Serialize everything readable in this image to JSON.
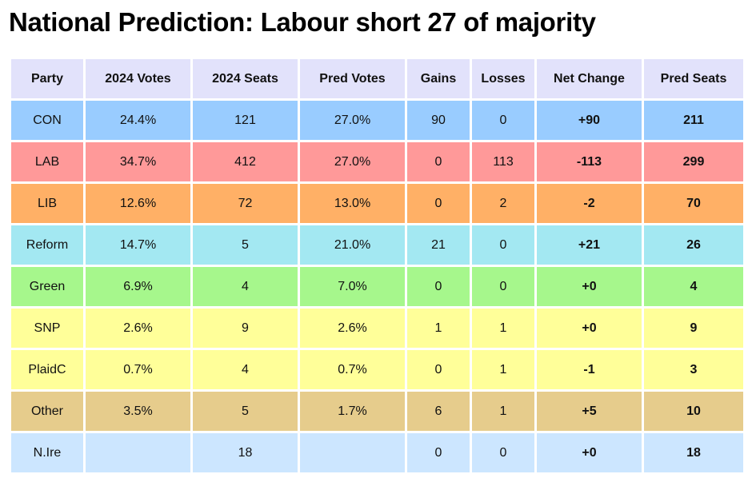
{
  "title": "National Prediction: Labour short 27 of majority",
  "columns": [
    "Party",
    "2024 Votes",
    "2024 Seats",
    "Pred Votes",
    "Gains",
    "Losses",
    "Net Change",
    "Pred Seats"
  ],
  "rows": [
    {
      "party": "CON",
      "votes_2024": "24.4%",
      "seats_2024": "121",
      "pred_votes": "27.0%",
      "gains": "90",
      "losses": "0",
      "net_change": "+90",
      "pred_seats": "211",
      "color": "#99ccff"
    },
    {
      "party": "LAB",
      "votes_2024": "34.7%",
      "seats_2024": "412",
      "pred_votes": "27.0%",
      "gains": "0",
      "losses": "113",
      "net_change": "-113",
      "pred_seats": "299",
      "color": "#ff9999"
    },
    {
      "party": "LIB",
      "votes_2024": "12.6%",
      "seats_2024": "72",
      "pred_votes": "13.0%",
      "gains": "0",
      "losses": "2",
      "net_change": "-2",
      "pred_seats": "70",
      "color": "#ffb066"
    },
    {
      "party": "Reform",
      "votes_2024": "14.7%",
      "seats_2024": "5",
      "pred_votes": "21.0%",
      "gains": "21",
      "losses": "0",
      "net_change": "+21",
      "pred_seats": "26",
      "color": "#a3e8f2"
    },
    {
      "party": "Green",
      "votes_2024": "6.9%",
      "seats_2024": "4",
      "pred_votes": "7.0%",
      "gains": "0",
      "losses": "0",
      "net_change": "+0",
      "pred_seats": "4",
      "color": "#a6f78c"
    },
    {
      "party": "SNP",
      "votes_2024": "2.6%",
      "seats_2024": "9",
      "pred_votes": "2.6%",
      "gains": "1",
      "losses": "1",
      "net_change": "+0",
      "pred_seats": "9",
      "color": "#ffff99"
    },
    {
      "party": "PlaidC",
      "votes_2024": "0.7%",
      "seats_2024": "4",
      "pred_votes": "0.7%",
      "gains": "0",
      "losses": "1",
      "net_change": "-1",
      "pred_seats": "3",
      "color": "#ffff99"
    },
    {
      "party": "Other",
      "votes_2024": "3.5%",
      "seats_2024": "5",
      "pred_votes": "1.7%",
      "gains": "6",
      "losses": "1",
      "net_change": "+5",
      "pred_seats": "10",
      "color": "#e6cc8c"
    },
    {
      "party": "N.Ire",
      "votes_2024": "",
      "seats_2024": "18",
      "pred_votes": "",
      "gains": "0",
      "losses": "0",
      "net_change": "+0",
      "pred_seats": "18",
      "color": "#cce6ff"
    }
  ],
  "colors": {
    "header_bg": "#e2e2fb",
    "page_bg": "#ffffff"
  }
}
